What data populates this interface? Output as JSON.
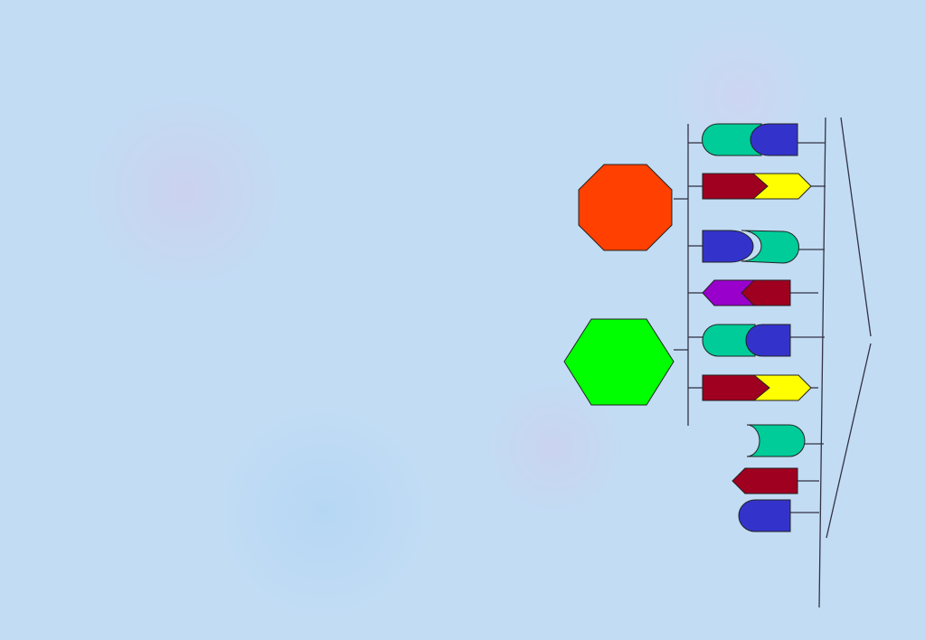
{
  "colors": {
    "background": "#c2dcf4",
    "octagon": "#ff4000",
    "hexagon": "#00ff00",
    "teal": "#00cc99",
    "blue": "#3333cc",
    "dark_red": "#a00020",
    "yellow": "#ffff00",
    "purple": "#9900cc",
    "line": "#333344"
  }
}
